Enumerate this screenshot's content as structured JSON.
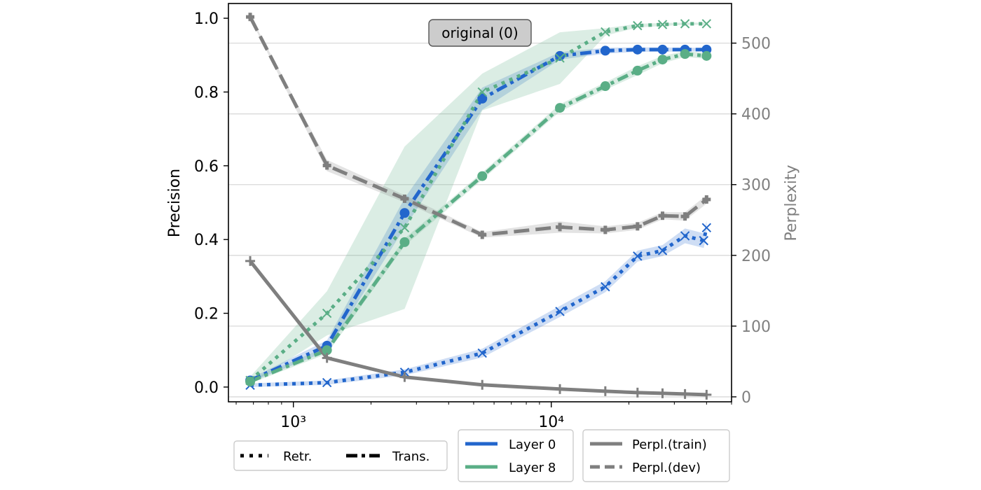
{
  "chart_data": {
    "type": "line",
    "xscale": "log",
    "xlim": [
      560,
      50000
    ],
    "x_tick_labels": [
      "10³",
      "10⁴"
    ],
    "x_tick_values": [
      1000,
      10000
    ],
    "ylabel": "Precision",
    "ylim": [
      -0.04,
      1.04
    ],
    "y_ticks": [
      "0.0",
      "0.2",
      "0.4",
      "0.6",
      "0.8",
      "1.0"
    ],
    "y_tick_values": [
      0.0,
      0.2,
      0.4,
      0.6,
      0.8,
      1.0
    ],
    "y2label": "Perplexity",
    "y2lim": [
      -7,
      556
    ],
    "y2_ticks": [
      "0",
      "100",
      "200",
      "300",
      "400",
      "500"
    ],
    "y2_tick_values": [
      0,
      100,
      200,
      300,
      400,
      500
    ],
    "grid": "horizontal (right axis)",
    "annotation": "original (0)",
    "colors": {
      "blue": "#2266cc",
      "green": "#5aae86",
      "gray": "#7f7f7f"
    },
    "legends": [
      {
        "entries": [
          {
            "label": "Retr.",
            "style": "dotted"
          },
          {
            "label": "Trans.",
            "style": "dashdot"
          }
        ]
      },
      {
        "entries": [
          {
            "label": "Layer 0",
            "color": "#2266cc"
          },
          {
            "label": "Layer 8",
            "color": "#5aae86"
          }
        ]
      },
      {
        "entries": [
          {
            "label": "Perpl.(train)",
            "style": "solid"
          },
          {
            "label": "Perpl.(dev)",
            "style": "dashed"
          }
        ]
      }
    ],
    "series": [
      {
        "layer": "Layer 0",
        "method": "Retr.",
        "axis": "left",
        "color": "#2266cc",
        "style": "dotted",
        "marker": "x",
        "x": [
          680,
          1350,
          2700,
          5400,
          10800,
          16200,
          21600,
          27000,
          33000,
          39000,
          40000
        ],
        "y": [
          0.005,
          0.012,
          0.04,
          0.092,
          0.205,
          0.272,
          0.355,
          0.37,
          0.41,
          0.397,
          0.432
        ],
        "band": [
          0.005,
          0.006,
          0.008,
          0.012,
          0.015,
          0.015,
          0.015,
          0.015,
          0.02,
          0.02,
          0.02
        ]
      },
      {
        "layer": "Layer 0",
        "method": "Trans.",
        "axis": "left",
        "color": "#2266cc",
        "style": "dashdot",
        "marker": "o",
        "x": [
          680,
          1350,
          2700,
          5400,
          10800,
          16200,
          21600,
          27000,
          33000,
          40000
        ],
        "y": [
          0.018,
          0.112,
          0.472,
          0.782,
          0.898,
          0.912,
          0.915,
          0.915,
          0.915,
          0.915
        ],
        "band": [
          0.005,
          0.015,
          0.04,
          0.03,
          0.01,
          0.008,
          0.006,
          0.006,
          0.005,
          0.005
        ]
      },
      {
        "layer": "Layer 8",
        "method": "Retr.",
        "axis": "left",
        "color": "#5aae86",
        "style": "dotted",
        "marker": "x",
        "x": [
          680,
          1350,
          2700,
          5400,
          10800,
          16200,
          21600,
          27000,
          33000,
          40000
        ],
        "y": [
          0.018,
          0.2,
          0.432,
          0.8,
          0.892,
          0.963,
          0.98,
          0.983,
          0.985,
          0.985
        ],
        "band": [
          0.01,
          0.06,
          0.22,
          0.05,
          0.07,
          0.01,
          0.005,
          0.004,
          0.003,
          0.003
        ]
      },
      {
        "layer": "Layer 8",
        "method": "Trans.",
        "axis": "left",
        "color": "#5aae86",
        "style": "dashdot",
        "marker": "o",
        "x": [
          680,
          1350,
          2700,
          5400,
          10800,
          16200,
          21600,
          27000,
          33000,
          40000
        ],
        "y": [
          0.015,
          0.1,
          0.393,
          0.572,
          0.757,
          0.816,
          0.858,
          0.888,
          0.903,
          0.898
        ],
        "band": [
          0.005,
          0.01,
          0.01,
          0.01,
          0.01,
          0.01,
          0.012,
          0.01,
          0.008,
          0.008
        ]
      },
      {
        "name": "Perpl.(train)",
        "axis": "right",
        "color": "#7f7f7f",
        "style": "solid",
        "marker": "+",
        "x": [
          680,
          1350,
          2700,
          5400,
          10800,
          16200,
          21600,
          27000,
          33000,
          40000
        ],
        "y": [
          192,
          55,
          28,
          17,
          11,
          8,
          6,
          5,
          4,
          3
        ],
        "band": [
          1,
          2,
          1,
          1,
          1,
          1,
          1,
          1,
          1,
          1
        ]
      },
      {
        "name": "Perpl.(dev)",
        "axis": "right",
        "color": "#7f7f7f",
        "style": "dashed",
        "marker": "P",
        "x": [
          680,
          1350,
          2700,
          5400,
          10800,
          16200,
          21600,
          27000,
          33000,
          40000
        ],
        "y": [
          537,
          327,
          280,
          229,
          240,
          236,
          241,
          256,
          255,
          279
        ],
        "band": [
          2,
          8,
          5,
          4,
          8,
          5,
          5,
          5,
          6,
          6
        ]
      }
    ]
  }
}
